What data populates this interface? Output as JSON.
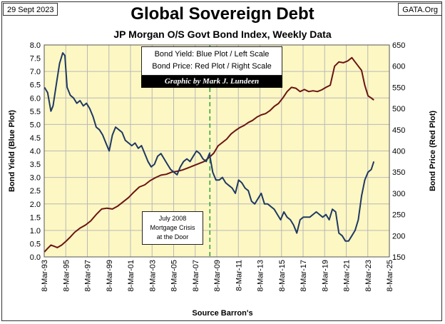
{
  "header": {
    "date": "29 Sept 2023",
    "source_tag": "GATA.Org",
    "title": "Global Sovereign Debt",
    "subtitle": "JP Morgan O/S Govt Bond Index, Weekly Data"
  },
  "legend": {
    "line1": "Bond Yield: Blue Plot / Left Scale",
    "line2": "Bond Price: Red Plot / Right Scale",
    "credit": "Graphic by Mark J. Lundeen"
  },
  "annotation": {
    "line1": "July 2008",
    "line2": "Mortgage Crisis",
    "line3": "at the Door",
    "event_date_year": 2008.54
  },
  "colors": {
    "plot_bg": "#fdf7c3",
    "grid": "#b8b8b8",
    "yield_line": "#1f3864",
    "price_line": "#6b1414",
    "event_line": "#2e9e3e"
  },
  "chart_data": {
    "type": "line",
    "title": "Global Sovereign Debt",
    "subtitle": "JP Morgan O/S Govt Bond Index, Weekly Data",
    "xlabel": "Source Barron's",
    "ylabel_left": "Bond  Yield   (Blue Plot)",
    "ylabel_right": "Bond  Price   (Red Plot)",
    "x_tick_labels": [
      "8-Mar-93",
      "8-Mar-95",
      "8-Mar-97",
      "8-Mar-99",
      "8-Mar-01",
      "8-Mar-03",
      "8-Mar-05",
      "8-Mar-07",
      "8-Mar-09",
      "8-Mar-11",
      "8-Mar-13",
      "8-Mar-15",
      "8-Mar-17",
      "8-Mar-19",
      "8-Mar-21",
      "8-Mar-23",
      "8-Mar-25"
    ],
    "x_tick_years": [
      1993.18,
      1995.18,
      1997.18,
      1999.18,
      2001.18,
      2003.18,
      2005.18,
      2007.18,
      2009.18,
      2011.18,
      2013.18,
      2015.18,
      2017.18,
      2019.18,
      2021.18,
      2023.18,
      2025.18
    ],
    "xlim": [
      1993.18,
      2025.18
    ],
    "ylim_left": [
      0,
      8
    ],
    "ylim_right": [
      150,
      650
    ],
    "left_tick_labels": [
      "0.0",
      "0.5",
      "1.0",
      "1.5",
      "2.0",
      "2.5",
      "3.0",
      "3.5",
      "4.0",
      "4.5",
      "5.0",
      "5.5",
      "6.0",
      "6.5",
      "7.0",
      "7.5",
      "8.0"
    ],
    "right_tick_labels": [
      "150",
      "200",
      "250",
      "300",
      "350",
      "400",
      "450",
      "500",
      "550",
      "600",
      "650"
    ],
    "grid": true,
    "series": [
      {
        "name": "Bond Yield",
        "axis": "left",
        "x": [
          1993.2,
          1993.5,
          1993.8,
          1994.0,
          1994.3,
          1994.6,
          1994.9,
          1995.1,
          1995.3,
          1995.6,
          1995.9,
          1996.2,
          1996.5,
          1996.8,
          1997.1,
          1997.4,
          1997.7,
          1998.0,
          1998.3,
          1998.6,
          1998.9,
          1999.2,
          1999.5,
          1999.8,
          2000.1,
          2000.4,
          2000.7,
          2001.0,
          2001.3,
          2001.6,
          2001.9,
          2002.2,
          2002.5,
          2002.8,
          2003.1,
          2003.4,
          2003.7,
          2004.0,
          2004.3,
          2004.6,
          2004.9,
          2005.2,
          2005.5,
          2005.8,
          2006.1,
          2006.4,
          2006.7,
          2007.0,
          2007.3,
          2007.6,
          2007.9,
          2008.2,
          2008.5,
          2008.8,
          2009.1,
          2009.4,
          2009.7,
          2010.0,
          2010.3,
          2010.6,
          2010.9,
          2011.2,
          2011.5,
          2011.8,
          2012.1,
          2012.4,
          2012.7,
          2013.0,
          2013.3,
          2013.6,
          2013.9,
          2014.2,
          2014.5,
          2014.8,
          2015.1,
          2015.4,
          2015.7,
          2016.0,
          2016.3,
          2016.6,
          2016.9,
          2017.2,
          2017.5,
          2017.8,
          2018.1,
          2018.4,
          2018.7,
          2019.0,
          2019.3,
          2019.6,
          2019.9,
          2020.2,
          2020.5,
          2020.8,
          2021.1,
          2021.4,
          2021.7,
          2022.0,
          2022.3,
          2022.6,
          2022.9,
          2023.2,
          2023.5,
          2023.74
        ],
        "y": [
          6.4,
          6.2,
          5.5,
          5.7,
          6.5,
          7.3,
          7.7,
          7.6,
          6.4,
          6.1,
          6.0,
          5.8,
          5.9,
          5.7,
          5.8,
          5.6,
          5.3,
          4.9,
          4.8,
          4.6,
          4.3,
          4.0,
          4.6,
          4.9,
          4.8,
          4.7,
          4.4,
          4.3,
          4.2,
          4.3,
          4.1,
          4.2,
          3.9,
          3.6,
          3.4,
          3.5,
          3.8,
          3.9,
          3.7,
          3.5,
          3.3,
          3.2,
          3.1,
          3.4,
          3.6,
          3.7,
          3.6,
          3.8,
          4.0,
          3.9,
          3.7,
          3.6,
          3.9,
          3.2,
          2.9,
          2.9,
          3.0,
          2.8,
          2.7,
          2.6,
          2.4,
          2.9,
          2.8,
          2.6,
          2.5,
          2.1,
          2.0,
          2.2,
          2.4,
          2.0,
          2.0,
          1.9,
          1.8,
          1.6,
          1.4,
          1.7,
          1.5,
          1.4,
          1.2,
          0.9,
          1.4,
          1.5,
          1.5,
          1.5,
          1.6,
          1.7,
          1.6,
          1.5,
          1.6,
          1.4,
          1.8,
          1.7,
          0.9,
          0.8,
          0.6,
          0.6,
          0.8,
          1.0,
          1.4,
          2.3,
          2.9,
          3.2,
          3.3,
          3.6
        ]
      },
      {
        "name": "Bond Price",
        "axis": "right",
        "x": [
          1993.2,
          1993.5,
          1993.8,
          1994.1,
          1994.4,
          1994.8,
          1995.2,
          1995.6,
          1996.0,
          1996.5,
          1997.0,
          1997.5,
          1998.0,
          1998.5,
          1999.0,
          1999.5,
          2000.0,
          2000.5,
          2001.0,
          2001.5,
          2002.0,
          2002.5,
          2003.0,
          2003.5,
          2004.0,
          2004.5,
          2005.0,
          2005.5,
          2006.0,
          2006.5,
          2007.0,
          2007.5,
          2008.0,
          2008.5,
          2008.9,
          2009.3,
          2009.7,
          2010.1,
          2010.5,
          2010.9,
          2011.3,
          2011.7,
          2012.1,
          2012.5,
          2012.9,
          2013.3,
          2013.7,
          2014.1,
          2014.5,
          2014.9,
          2015.3,
          2015.7,
          2016.1,
          2016.5,
          2016.9,
          2017.3,
          2017.7,
          2018.1,
          2018.5,
          2018.9,
          2019.3,
          2019.7,
          2020.1,
          2020.5,
          2020.9,
          2021.3,
          2021.7,
          2022.0,
          2022.3,
          2022.6,
          2022.9,
          2023.2,
          2023.5,
          2023.74
        ],
        "y": [
          162,
          170,
          178,
          175,
          172,
          178,
          187,
          197,
          208,
          218,
          225,
          235,
          250,
          263,
          265,
          263,
          270,
          280,
          290,
          303,
          315,
          320,
          330,
          337,
          343,
          345,
          350,
          352,
          355,
          360,
          365,
          370,
          375,
          385,
          395,
          412,
          420,
          428,
          440,
          448,
          455,
          460,
          467,
          472,
          480,
          485,
          488,
          495,
          505,
          512,
          525,
          540,
          550,
          548,
          540,
          545,
          540,
          542,
          540,
          544,
          550,
          555,
          600,
          610,
          608,
          612,
          620,
          610,
          600,
          590,
          555,
          530,
          525,
          520
        ]
      }
    ]
  }
}
